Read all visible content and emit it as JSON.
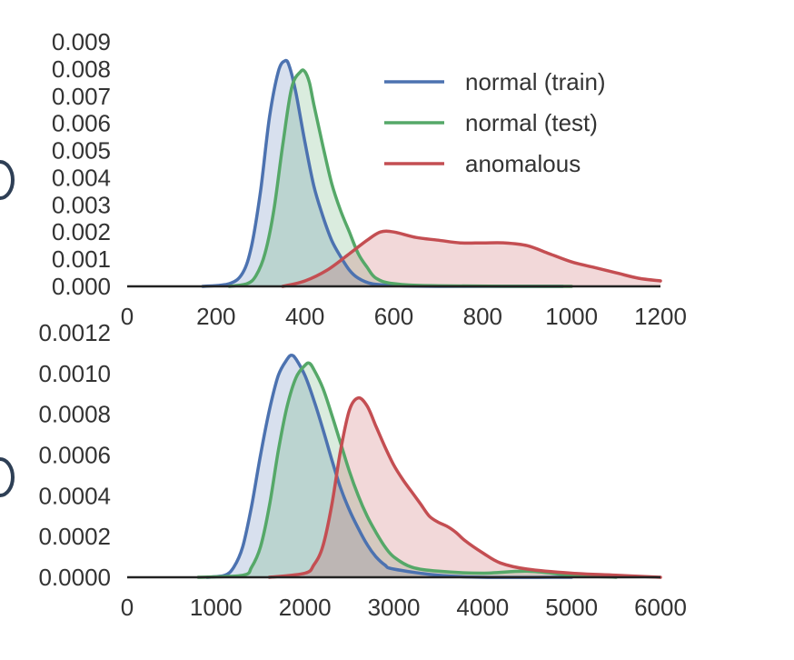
{
  "chart_data": [
    {
      "type": "area",
      "title": "",
      "xlabel": "",
      "ylabel": "",
      "xlim": [
        0,
        1200
      ],
      "ylim": [
        0,
        0.009
      ],
      "x_ticks": [
        "0",
        "200",
        "400",
        "600",
        "800",
        "1000",
        "1200"
      ],
      "y_ticks": [
        "0.000",
        "0.001",
        "0.002",
        "0.003",
        "0.004",
        "0.005",
        "0.006",
        "0.007",
        "0.008",
        "0.009"
      ],
      "grid": false,
      "legend": {
        "position": "top-right",
        "entries": [
          "normal (train)",
          "normal (test)",
          "anomalous"
        ]
      },
      "series": [
        {
          "name": "normal (train)",
          "color": "#4c72b0",
          "points": [
            [
              170,
              0
            ],
            [
              230,
              0.0001
            ],
            [
              260,
              0.0005
            ],
            [
              280,
              0.0015
            ],
            [
              300,
              0.0035
            ],
            [
              320,
              0.0062
            ],
            [
              340,
              0.0079
            ],
            [
              355,
              0.0083
            ],
            [
              365,
              0.0081
            ],
            [
              380,
              0.0071
            ],
            [
              400,
              0.0053
            ],
            [
              420,
              0.0037
            ],
            [
              440,
              0.0026
            ],
            [
              460,
              0.0017
            ],
            [
              480,
              0.0011
            ],
            [
              500,
              0.0006
            ],
            [
              520,
              0.0003
            ],
            [
              550,
              0.0001
            ],
            [
              600,
              3e-05
            ],
            [
              700,
              0
            ],
            [
              980,
              0
            ]
          ]
        },
        {
          "name": "normal (test)",
          "color": "#55a868",
          "points": [
            [
              230,
              0
            ],
            [
              270,
              0.0001
            ],
            [
              290,
              0.0004
            ],
            [
              310,
              0.0012
            ],
            [
              330,
              0.0028
            ],
            [
              350,
              0.0052
            ],
            [
              370,
              0.0073
            ],
            [
              390,
              0.0079
            ],
            [
              400,
              0.0079
            ],
            [
              410,
              0.0075
            ],
            [
              420,
              0.0067
            ],
            [
              440,
              0.0052
            ],
            [
              460,
              0.0038
            ],
            [
              480,
              0.0028
            ],
            [
              500,
              0.002
            ],
            [
              520,
              0.0012
            ],
            [
              540,
              0.0007
            ],
            [
              560,
              0.0003
            ],
            [
              600,
              0.0001
            ],
            [
              700,
              2e-05
            ],
            [
              1000,
              0
            ]
          ]
        },
        {
          "name": "anomalous",
          "color": "#c44e52",
          "points": [
            [
              350,
              0
            ],
            [
              400,
              0.0002
            ],
            [
              450,
              0.0006
            ],
            [
              500,
              0.0012
            ],
            [
              540,
              0.0017
            ],
            [
              570,
              0.002
            ],
            [
              600,
              0.002
            ],
            [
              650,
              0.0018
            ],
            [
              700,
              0.0017
            ],
            [
              750,
              0.0016
            ],
            [
              800,
              0.0016
            ],
            [
              850,
              0.0016
            ],
            [
              900,
              0.0015
            ],
            [
              950,
              0.0012
            ],
            [
              1000,
              0.0009
            ],
            [
              1050,
              0.0007
            ],
            [
              1100,
              0.0005
            ],
            [
              1150,
              0.0003
            ],
            [
              1200,
              0.0002
            ]
          ]
        }
      ]
    },
    {
      "type": "area",
      "title": "",
      "xlabel": "",
      "ylabel": "",
      "xlim": [
        0,
        6000
      ],
      "ylim": [
        0,
        0.0012
      ],
      "x_ticks": [
        "0",
        "1000",
        "2000",
        "3000",
        "4000",
        "5000",
        "6000"
      ],
      "y_ticks": [
        "0.0000",
        "0.0002",
        "0.0004",
        "0.0006",
        "0.0008",
        "0.0010",
        "0.0012"
      ],
      "grid": false,
      "series": [
        {
          "name": "normal (train)",
          "color": "#4c72b0",
          "points": [
            [
              900,
              0
            ],
            [
              1100,
              1e-05
            ],
            [
              1200,
              5e-05
            ],
            [
              1300,
              0.00015
            ],
            [
              1400,
              0.00035
            ],
            [
              1500,
              0.0006
            ],
            [
              1600,
              0.00082
            ],
            [
              1700,
              0.00099
            ],
            [
              1800,
              0.00107
            ],
            [
              1850,
              0.00109
            ],
            [
              1900,
              0.00107
            ],
            [
              2000,
              0.00099
            ],
            [
              2100,
              0.00087
            ],
            [
              2200,
              0.00073
            ],
            [
              2300,
              0.00058
            ],
            [
              2400,
              0.00044
            ],
            [
              2500,
              0.00033
            ],
            [
              2600,
              0.00024
            ],
            [
              2700,
              0.00016
            ],
            [
              2800,
              0.0001
            ],
            [
              2900,
              6e-05
            ],
            [
              3000,
              4e-05
            ],
            [
              3500,
              1e-05
            ],
            [
              4000,
              0
            ],
            [
              5000,
              0
            ]
          ]
        },
        {
          "name": "normal (test)",
          "color": "#55a868",
          "points": [
            [
              800,
              0
            ],
            [
              1300,
              1e-05
            ],
            [
              1400,
              5e-05
            ],
            [
              1500,
              0.00015
            ],
            [
              1600,
              0.00035
            ],
            [
              1700,
              0.00062
            ],
            [
              1800,
              0.00084
            ],
            [
              1900,
              0.00098
            ],
            [
              2000,
              0.00104
            ],
            [
              2050,
              0.00105
            ],
            [
              2100,
              0.00102
            ],
            [
              2200,
              0.00093
            ],
            [
              2300,
              0.0008
            ],
            [
              2400,
              0.00066
            ],
            [
              2500,
              0.00052
            ],
            [
              2600,
              0.0004
            ],
            [
              2700,
              0.0003
            ],
            [
              2800,
              0.00022
            ],
            [
              2900,
              0.00015
            ],
            [
              3000,
              0.0001
            ],
            [
              3200,
              5e-05
            ],
            [
              3500,
              3e-05
            ],
            [
              4000,
              2e-05
            ],
            [
              4500,
              3e-05
            ],
            [
              5000,
              1e-05
            ],
            [
              5500,
              0
            ]
          ]
        },
        {
          "name": "anomalous",
          "color": "#c44e52",
          "points": [
            [
              1600,
              0
            ],
            [
              2000,
              2e-05
            ],
            [
              2100,
              6e-05
            ],
            [
              2200,
              0.00015
            ],
            [
              2300,
              0.00035
            ],
            [
              2400,
              0.00062
            ],
            [
              2500,
              0.00082
            ],
            [
              2600,
              0.00088
            ],
            [
              2700,
              0.00084
            ],
            [
              2800,
              0.00074
            ],
            [
              2900,
              0.00064
            ],
            [
              3000,
              0.00055
            ],
            [
              3100,
              0.00048
            ],
            [
              3200,
              0.00042
            ],
            [
              3300,
              0.00036
            ],
            [
              3400,
              0.0003
            ],
            [
              3500,
              0.00027
            ],
            [
              3600,
              0.00025
            ],
            [
              3700,
              0.00022
            ],
            [
              3800,
              0.00018
            ],
            [
              4000,
              0.00012
            ],
            [
              4200,
              7e-05
            ],
            [
              4500,
              4e-05
            ],
            [
              5000,
              2e-05
            ],
            [
              5500,
              1e-05
            ],
            [
              6000,
              0
            ]
          ]
        }
      ]
    }
  ]
}
